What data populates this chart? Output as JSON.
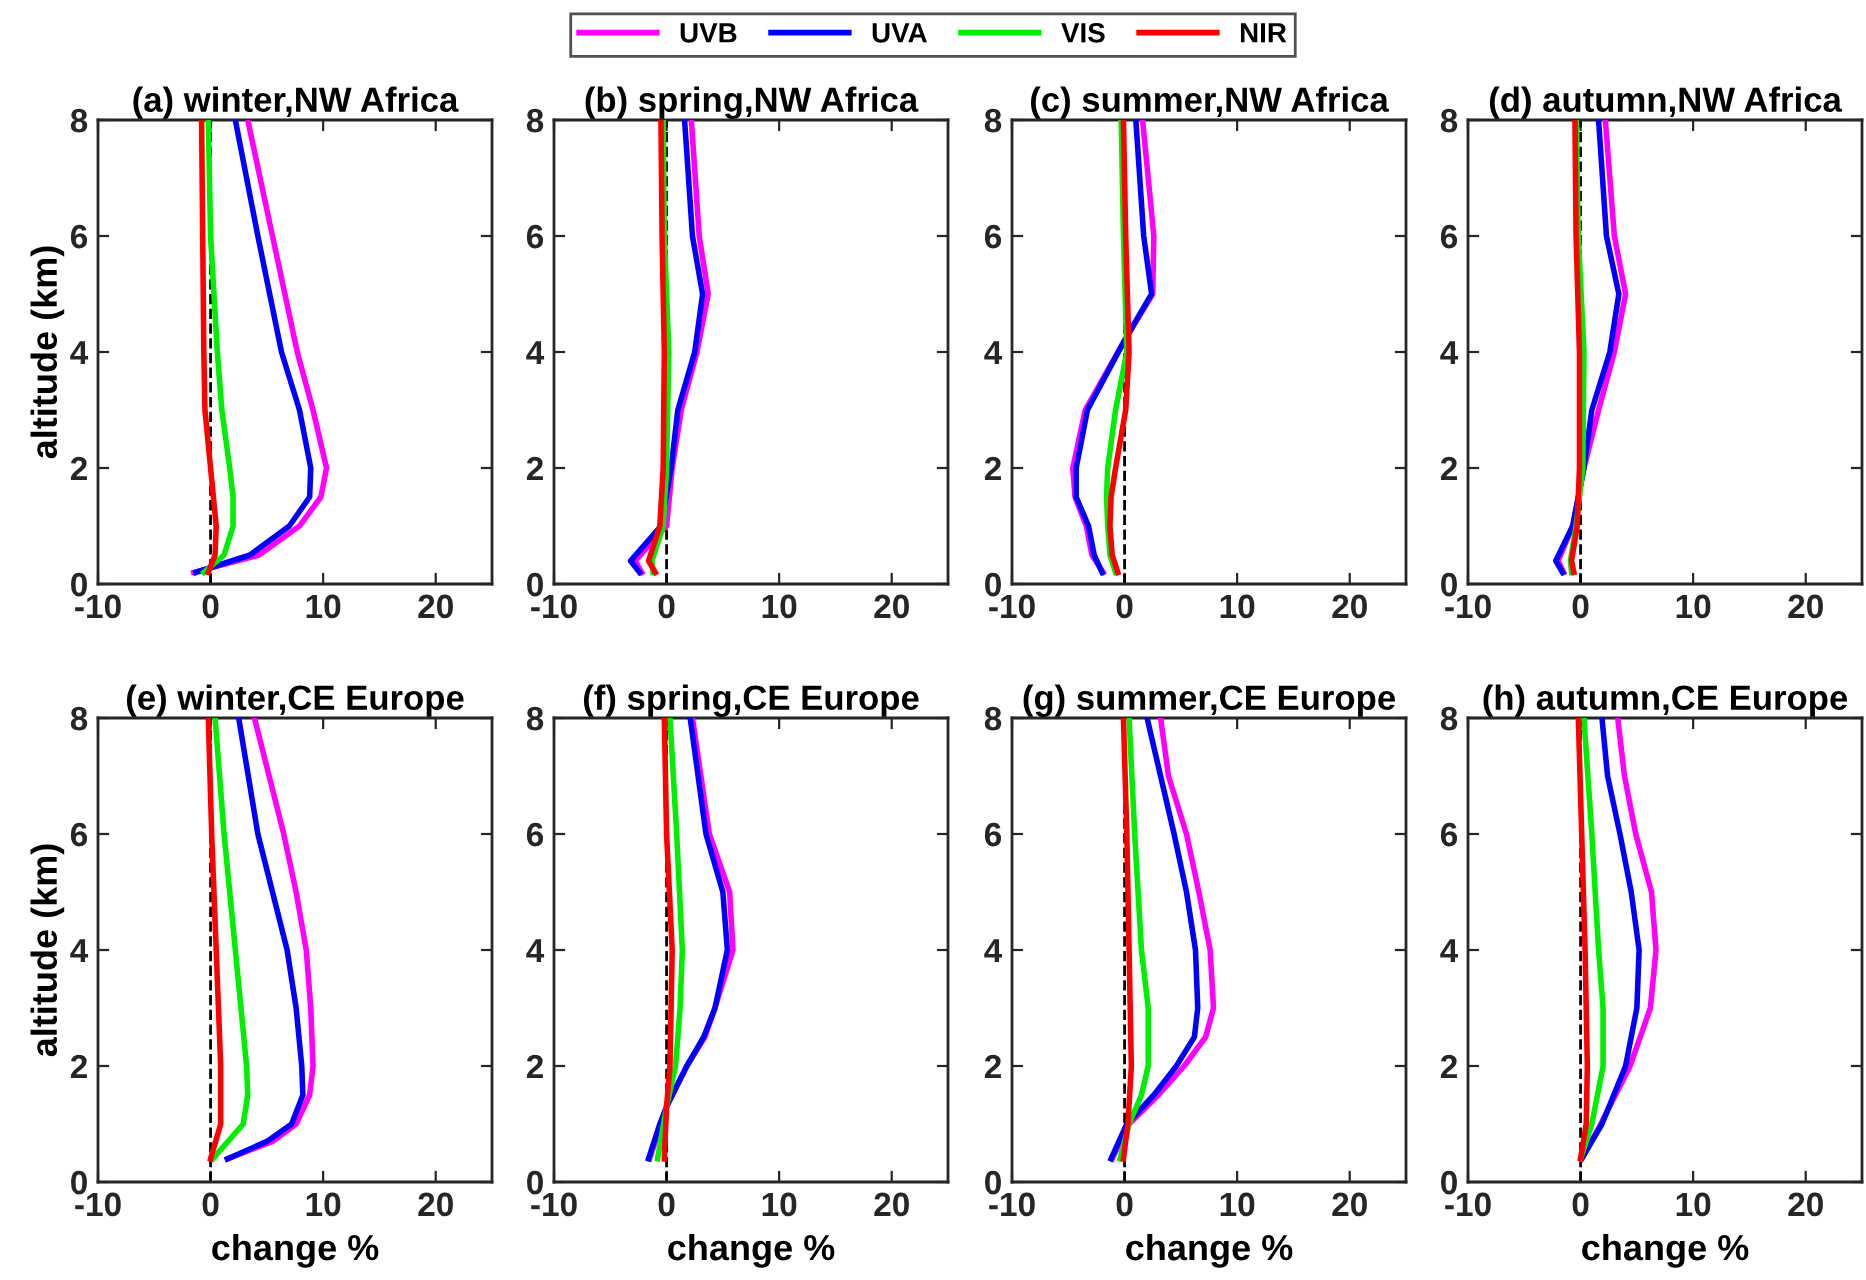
{
  "chart_data": [
    {
      "type": "line",
      "title": "(a) winter,NW Africa",
      "ylabel": "altitude (km)",
      "xlim": [
        -10,
        25
      ],
      "ylim": [
        0,
        8
      ],
      "xticks": [
        -10,
        0,
        10,
        20
      ],
      "yticks": [
        0,
        2,
        4,
        6,
        8
      ],
      "legend": "top",
      "ref_lines": [
        {
          "axis": "x",
          "value": 0,
          "color": "#000000",
          "line_style": "dashed"
        }
      ],
      "series": [
        {
          "name": "UVB",
          "color": "#ff00ff",
          "x": [
            3.3,
            5.5,
            7.7,
            9.1,
            10.3,
            9.8,
            7.9,
            4.3,
            -1.5
          ],
          "values": [
            8,
            6,
            4,
            3,
            2,
            1.5,
            1,
            0.5,
            0.2
          ]
        },
        {
          "name": "UVA",
          "color": "#0000ff",
          "x": [
            2.2,
            4.2,
            6.3,
            7.9,
            8.9,
            8.8,
            7.0,
            3.5,
            -1.3
          ],
          "values": [
            8,
            6,
            4,
            3,
            2,
            1.5,
            1,
            0.5,
            0.2
          ]
        },
        {
          "name": "VIS",
          "color": "#00ee00",
          "x": [
            -0.2,
            0,
            0.6,
            1.0,
            1.7,
            2.0,
            2.0,
            1.2,
            -0.6
          ],
          "values": [
            8,
            6,
            4,
            3,
            2,
            1.5,
            1,
            0.5,
            0.2
          ]
        },
        {
          "name": "NIR",
          "color": "#ff0000",
          "x": [
            -0.8,
            -0.7,
            -0.6,
            -0.5,
            0,
            0.5,
            0.4,
            -0.2
          ],
          "values": [
            8,
            6,
            4,
            3,
            2,
            1,
            0.5,
            0.2
          ]
        }
      ]
    },
    {
      "type": "line",
      "title": "(b) spring,NW Africa",
      "xlim": [
        -10,
        25
      ],
      "ylim": [
        0,
        8
      ],
      "xticks": [
        -10,
        0,
        10,
        20
      ],
      "yticks": [
        0,
        2,
        4,
        6,
        8
      ],
      "ref_lines": [
        {
          "axis": "x",
          "value": 0,
          "color": "#000000",
          "line_style": "dashed"
        }
      ],
      "series": [
        {
          "color": "#ff00ff",
          "x": [
            2.2,
            2.9,
            3.7,
            2.7,
            1.3,
            0.5,
            0,
            -2.8,
            -2.2
          ],
          "values": [
            8,
            6,
            5,
            4,
            3,
            2,
            1,
            0.4,
            0.2
          ]
        },
        {
          "color": "#0000ff",
          "x": [
            1.6,
            2.3,
            3.2,
            2.5,
            1.0,
            0.4,
            -0.5,
            -3.2,
            -2.4
          ],
          "values": [
            8,
            6,
            5,
            4,
            3,
            2,
            1,
            0.4,
            0.2
          ]
        },
        {
          "color": "#00ee00",
          "x": [
            -0.3,
            -0.2,
            0.2,
            0,
            -0.3,
            -1.3,
            -1.2
          ],
          "values": [
            8,
            6,
            4,
            2,
            1,
            0.4,
            0.2
          ]
        },
        {
          "color": "#ff0000",
          "x": [
            -0.5,
            -0.4,
            -0.2,
            -0.3,
            -0.6,
            -1.6,
            -1.0
          ],
          "values": [
            8,
            6,
            4,
            2,
            1,
            0.4,
            0.2
          ]
        }
      ]
    },
    {
      "type": "line",
      "title": "(c) summer,NW Africa",
      "xlim": [
        -10,
        25
      ],
      "ylim": [
        0,
        8
      ],
      "xticks": [
        -10,
        0,
        10,
        20
      ],
      "yticks": [
        0,
        2,
        4,
        6,
        8
      ],
      "ref_lines": [
        {
          "axis": "x",
          "value": 0,
          "color": "#000000",
          "line_style": "dashed"
        }
      ],
      "series": [
        {
          "color": "#ff00ff",
          "x": [
            1.6,
            2.6,
            2.5,
            0,
            -3.5,
            -4.6,
            -4.4,
            -3.4,
            -2.9,
            -1.9
          ],
          "values": [
            8,
            6,
            5,
            4.2,
            3,
            2,
            1.5,
            1,
            0.5,
            0.2
          ]
        },
        {
          "color": "#0000ff",
          "x": [
            1.0,
            1.7,
            2.4,
            0,
            -3.3,
            -4.3,
            -4.3,
            -3.2,
            -2.7,
            -2.0
          ],
          "values": [
            8,
            6,
            5,
            4.2,
            3,
            2,
            1.5,
            1,
            0.5,
            0.2
          ]
        },
        {
          "color": "#00ee00",
          "x": [
            -0.3,
            -0.1,
            0.2,
            -0.8,
            -1.5,
            -1.6,
            -1.5,
            -1.3,
            -0.8
          ],
          "values": [
            8,
            6,
            4,
            3,
            2,
            1.5,
            1,
            0.5,
            0.2
          ]
        },
        {
          "color": "#ff0000",
          "x": [
            -0.1,
            0.1,
            0.4,
            0.1,
            -0.8,
            -1.2,
            -1.3,
            -1.1,
            -0.6
          ],
          "values": [
            8,
            6,
            4,
            3,
            2,
            1.5,
            1,
            0.5,
            0.2
          ]
        }
      ]
    },
    {
      "type": "line",
      "title": "(d) autumn,NW Africa",
      "xlim": [
        -10,
        25
      ],
      "ylim": [
        0,
        8
      ],
      "xticks": [
        -10,
        0,
        10,
        20
      ],
      "yticks": [
        0,
        2,
        4,
        6,
        8
      ],
      "ref_lines": [
        {
          "axis": "x",
          "value": 0,
          "color": "#000000",
          "line_style": "dashed"
        }
      ],
      "series": [
        {
          "color": "#ff00ff",
          "x": [
            2.2,
            3.0,
            4.0,
            3.0,
            1.6,
            0.3,
            -0.2,
            -0.7,
            -2.0,
            -1.5
          ],
          "values": [
            8,
            6,
            5,
            4,
            3,
            2,
            1.5,
            1,
            0.4,
            0.2
          ]
        },
        {
          "color": "#0000ff",
          "x": [
            1.6,
            2.3,
            3.4,
            2.6,
            1.0,
            0.3,
            -0.2,
            -0.7,
            -2.2,
            -1.6
          ],
          "values": [
            8,
            6,
            5,
            4,
            3,
            2,
            1.5,
            1,
            0.4,
            0.2
          ]
        },
        {
          "color": "#00ee00",
          "x": [
            -0.4,
            -0.2,
            0.3,
            0.2,
            -0.4,
            -0.9,
            -0.8
          ],
          "values": [
            8,
            6,
            4,
            2,
            1,
            0.4,
            0.2
          ]
        },
        {
          "color": "#ff0000",
          "x": [
            -0.5,
            -0.4,
            -0.1,
            -0.1,
            -0.3,
            -0.8,
            -0.6
          ],
          "values": [
            8,
            6,
            4,
            2,
            1,
            0.4,
            0.2
          ]
        }
      ]
    },
    {
      "type": "line",
      "title": "(e) winter,CE Europe",
      "xlabel": "change %",
      "ylabel": "altitude (km)",
      "xlim": [
        -10,
        25
      ],
      "ylim": [
        0,
        8
      ],
      "xticks": [
        -10,
        0,
        10,
        20
      ],
      "yticks": [
        0,
        2,
        4,
        6,
        8
      ],
      "ref_lines": [
        {
          "axis": "x",
          "value": 0,
          "color": "#000000",
          "line_style": "dashed"
        }
      ],
      "series": [
        {
          "color": "#ff00ff",
          "x": [
            3.9,
            6.5,
            7.6,
            8.5,
            8.9,
            9.1,
            8.8,
            7.6,
            5.5,
            1.5
          ],
          "values": [
            8,
            6,
            5,
            4,
            3,
            2,
            1.5,
            1,
            0.7,
            0.4
          ]
        },
        {
          "color": "#0000ff",
          "x": [
            2.5,
            4.2,
            6.8,
            7.6,
            8.1,
            8.2,
            7.2,
            5.0,
            1.5
          ],
          "values": [
            8,
            6,
            4,
            3,
            2,
            1.5,
            1,
            0.7,
            0.4
          ]
        },
        {
          "color": "#00ee00",
          "x": [
            0.4,
            1.2,
            2.2,
            3.2,
            3.3,
            2.9,
            0.2
          ],
          "values": [
            8,
            6,
            4,
            2,
            1.5,
            1,
            0.4
          ]
        },
        {
          "color": "#ff0000",
          "x": [
            -0.2,
            0.1,
            0.5,
            0.9,
            0.9,
            0
          ],
          "values": [
            8,
            6,
            4,
            2,
            1,
            0.4
          ]
        }
      ]
    },
    {
      "type": "line",
      "title": "(f) spring,CE Europe",
      "xlabel": "change %",
      "xlim": [
        -10,
        25
      ],
      "ylim": [
        0,
        8
      ],
      "xticks": [
        -10,
        0,
        10,
        20
      ],
      "yticks": [
        0,
        2,
        4,
        6,
        8
      ],
      "ref_lines": [
        {
          "axis": "x",
          "value": 0,
          "color": "#000000",
          "line_style": "dashed"
        }
      ],
      "series": [
        {
          "color": "#ff00ff",
          "x": [
            2.3,
            3.8,
            5.6,
            5.9,
            4.3,
            3.4,
            1.8,
            0,
            -0.5,
            -1.5
          ],
          "values": [
            8,
            6,
            5,
            4,
            3,
            2.5,
            2,
            1.3,
            1,
            0.4
          ]
        },
        {
          "color": "#0000ff",
          "x": [
            2.1,
            3.5,
            5.0,
            5.4,
            4.3,
            3.3,
            1.8,
            0,
            -0.6,
            -1.6
          ],
          "values": [
            8,
            6,
            5,
            4,
            3,
            2.5,
            2,
            1.3,
            1,
            0.4
          ]
        },
        {
          "color": "#00ee00",
          "x": [
            0.3,
            0.9,
            1.4,
            1.2,
            0.8,
            0,
            -0.8
          ],
          "values": [
            8,
            6,
            4,
            3,
            2,
            1.3,
            0.4
          ]
        },
        {
          "color": "#ff0000",
          "x": [
            -0.2,
            0,
            0.5,
            0.3,
            0,
            -0.2
          ],
          "values": [
            8,
            6,
            4,
            2,
            1.3,
            0.4
          ]
        }
      ]
    },
    {
      "type": "line",
      "title": "(g) summer,CE Europe",
      "xlabel": "change %",
      "xlim": [
        -10,
        25
      ],
      "ylim": [
        0,
        8
      ],
      "xticks": [
        -10,
        0,
        10,
        20
      ],
      "yticks": [
        0,
        2,
        4,
        6,
        8
      ],
      "ref_lines": [
        {
          "axis": "x",
          "value": 0,
          "color": "#000000",
          "line_style": "dashed"
        }
      ],
      "series": [
        {
          "color": "#ff00ff",
          "x": [
            3.2,
            3.9,
            5.5,
            6.6,
            7.6,
            7.9,
            7.2,
            5.3,
            3.0,
            0.4,
            -1.1
          ],
          "values": [
            8,
            7,
            6,
            5,
            4,
            3,
            2.5,
            2,
            1.5,
            1,
            0.4
          ]
        },
        {
          "color": "#0000ff",
          "x": [
            2.0,
            4.4,
            5.5,
            6.3,
            6.5,
            6.2,
            4.6,
            2.6,
            0.2,
            -1.2
          ],
          "values": [
            8,
            6,
            5,
            4,
            3,
            2.5,
            2,
            1.5,
            1,
            0.4
          ]
        },
        {
          "color": "#00ee00",
          "x": [
            0.4,
            0.9,
            1.5,
            2.1,
            2.1,
            1.5,
            0.4,
            -0.4
          ],
          "values": [
            8,
            6,
            4,
            3,
            2,
            1.5,
            1,
            0.4
          ]
        },
        {
          "color": "#ff0000",
          "x": [
            -0.1,
            0.2,
            0.4,
            0.6,
            0.3,
            -0.1
          ],
          "values": [
            8,
            6,
            4,
            2,
            1,
            0.4
          ]
        }
      ]
    },
    {
      "type": "line",
      "title": "(h) autumn,CE Europe",
      "xlabel": "change %",
      "xlim": [
        -10,
        25
      ],
      "ylim": [
        0,
        8
      ],
      "xticks": [
        -10,
        0,
        10,
        20
      ],
      "yticks": [
        0,
        2,
        4,
        6,
        8
      ],
      "ref_lines": [
        {
          "axis": "x",
          "value": 0,
          "color": "#000000",
          "line_style": "dashed"
        }
      ],
      "series": [
        {
          "color": "#ff00ff",
          "x": [
            3.3,
            3.9,
            4.9,
            6.3,
            6.7,
            6.2,
            4.4,
            1.8,
            0.1
          ],
          "values": [
            8,
            7,
            6,
            5,
            4,
            3,
            2,
            1,
            0.4
          ]
        },
        {
          "color": "#0000ff",
          "x": [
            1.9,
            2.4,
            3.5,
            4.5,
            5.2,
            5.0,
            4.0,
            1.9,
            0.1
          ],
          "values": [
            8,
            7,
            6,
            5,
            4,
            3,
            2,
            1,
            0.4
          ]
        },
        {
          "color": "#00ee00",
          "x": [
            0.3,
            1.0,
            1.6,
            2.0,
            2.0,
            1.0,
            0
          ],
          "values": [
            8,
            6,
            4,
            3,
            2,
            1,
            0.4
          ]
        },
        {
          "color": "#ff0000",
          "x": [
            -0.2,
            0.1,
            0.4,
            0.6,
            0.5,
            0
          ],
          "values": [
            8,
            6,
            4,
            2,
            1,
            0.4
          ]
        }
      ]
    }
  ]
}
